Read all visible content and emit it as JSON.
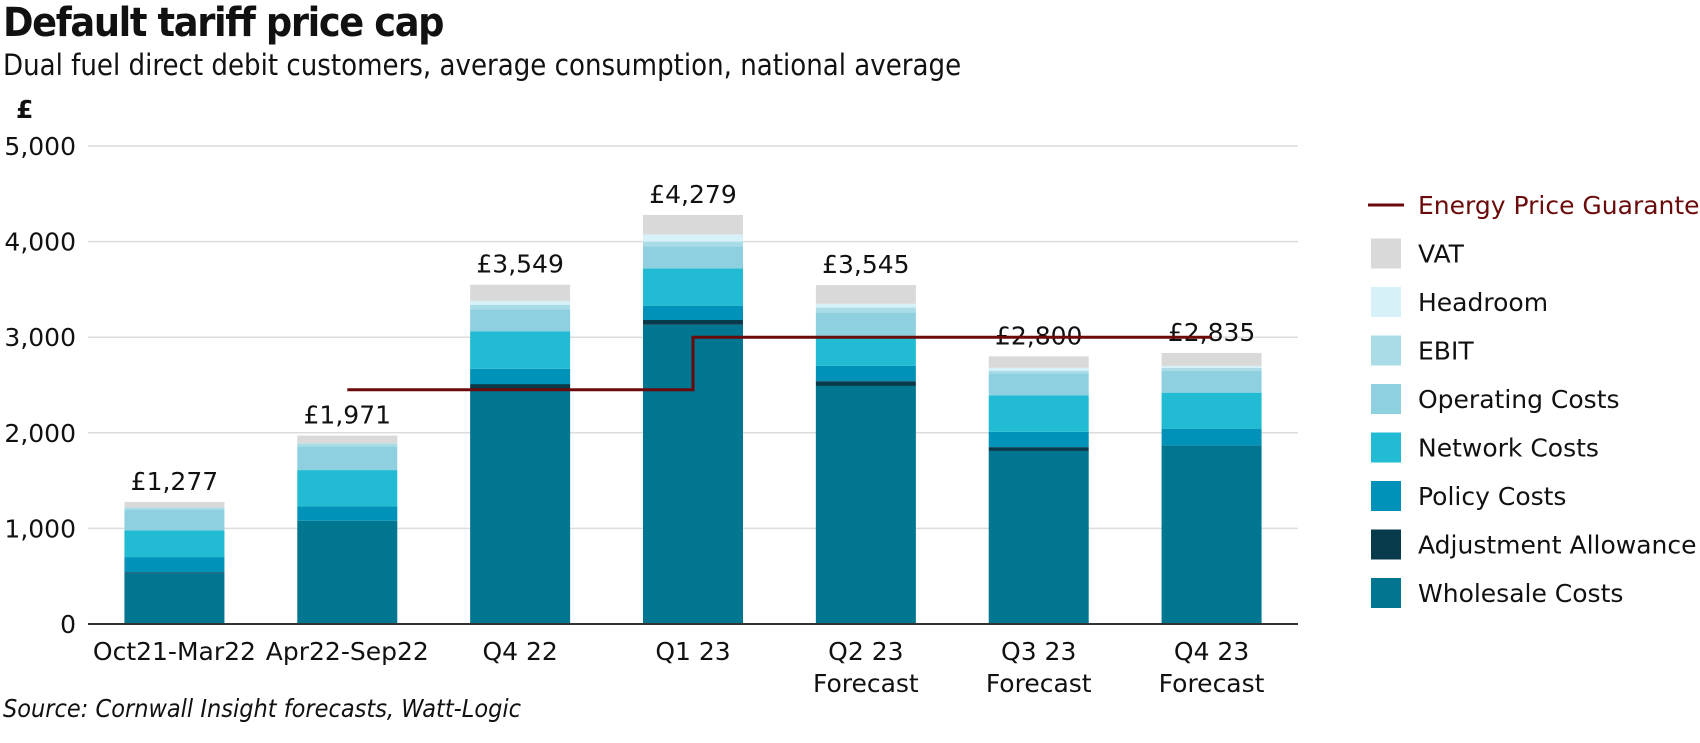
{
  "title": "Default tariff price cap",
  "subtitle": "Dual fuel direct debit customers, average consumption, national average",
  "source": "Source: Cornwall Insight forecasts, Watt-Logic",
  "chart_data": {
    "type": "bar",
    "stacked": true,
    "ylabel": "£",
    "ylim": [
      0,
      5000
    ],
    "yticks": [
      0,
      1000,
      2000,
      3000,
      4000,
      5000
    ],
    "ytick_labels": [
      "0",
      "1,000",
      "2,000",
      "3,000",
      "4,000",
      "5,000"
    ],
    "grid": true,
    "legend_position": "right",
    "categories": [
      [
        "Oct21-Mar22"
      ],
      [
        "Apr22-Sep22"
      ],
      [
        "Q4 22"
      ],
      [
        "Q1 23"
      ],
      [
        "Q2 23",
        "Forecast"
      ],
      [
        "Q3 23",
        "Forecast"
      ],
      [
        "Q4 23",
        "Forecast"
      ]
    ],
    "totals": [
      1277,
      1971,
      3549,
      4279,
      3545,
      2800,
      2835
    ],
    "total_labels": [
      "£1,277",
      "£1,971",
      "£3,549",
      "£4,279",
      "£3,545",
      "£2,800",
      "£2,835"
    ],
    "series": [
      {
        "name": "Wholesale Costs",
        "color": "#007690",
        "values": [
          530,
          1080,
          2450,
          3130,
          2490,
          1810,
          1870
        ]
      },
      {
        "name": "Adjustment Allowance",
        "color": "#073b4c",
        "values": [
          10,
          0,
          60,
          50,
          50,
          40,
          0
        ]
      },
      {
        "name": "Policy Costs",
        "color": "#0092b8",
        "values": [
          160,
          150,
          160,
          150,
          160,
          160,
          170
        ]
      },
      {
        "name": "Network Costs",
        "color": "#21bcd4",
        "values": [
          280,
          380,
          390,
          390,
          310,
          380,
          380
        ]
      },
      {
        "name": "Operating Costs",
        "color": "#8fd0e0",
        "values": [
          220,
          250,
          230,
          230,
          250,
          230,
          230
        ]
      },
      {
        "name": "EBIT",
        "color": "#a9dce6",
        "values": [
          20,
          30,
          50,
          50,
          50,
          30,
          30
        ]
      },
      {
        "name": "Headroom",
        "color": "#d6f1f8",
        "values": [
          0,
          0,
          40,
          75,
          40,
          30,
          20
        ]
      },
      {
        "name": "VAT",
        "color": "#d9d9d9",
        "values": [
          57,
          81,
          169,
          204,
          195,
          120,
          135
        ]
      }
    ],
    "line": {
      "name": "Energy Price Guarantee",
      "color": "#6b0a0a",
      "points": [
        {
          "x": 1.5,
          "y": 2450
        },
        {
          "x": 3.5,
          "y": 2450
        },
        {
          "x": 3.5,
          "y": 3000
        },
        {
          "x": 6.5,
          "y": 3000
        }
      ]
    }
  }
}
